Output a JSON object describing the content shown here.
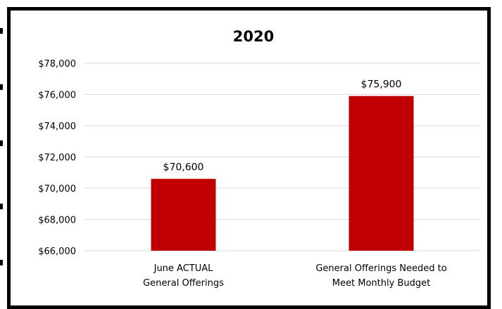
{
  "chart_data": {
    "type": "bar",
    "title": "2020",
    "categories": [
      [
        "June ACTUAL",
        "General Offerings"
      ],
      [
        "General Offerings Needed to",
        "Meet Monthly Budget"
      ]
    ],
    "values": [
      70600,
      75900
    ],
    "data_labels": [
      "$70,600",
      "$75,900"
    ],
    "ylim": [
      66000,
      78000
    ],
    "yticks": [
      66000,
      68000,
      70000,
      72000,
      74000,
      76000,
      78000
    ],
    "ytick_labels": [
      "$66,000",
      "$68,000",
      "$70,000",
      "$72,000",
      "$74,000",
      "$76,000",
      "$78,000"
    ],
    "xlabel": "",
    "ylabel": "",
    "grid": true,
    "legend": "none",
    "colors": {
      "bar": "#c00000",
      "grid": "#d9d9d9",
      "text": "#000000"
    }
  }
}
